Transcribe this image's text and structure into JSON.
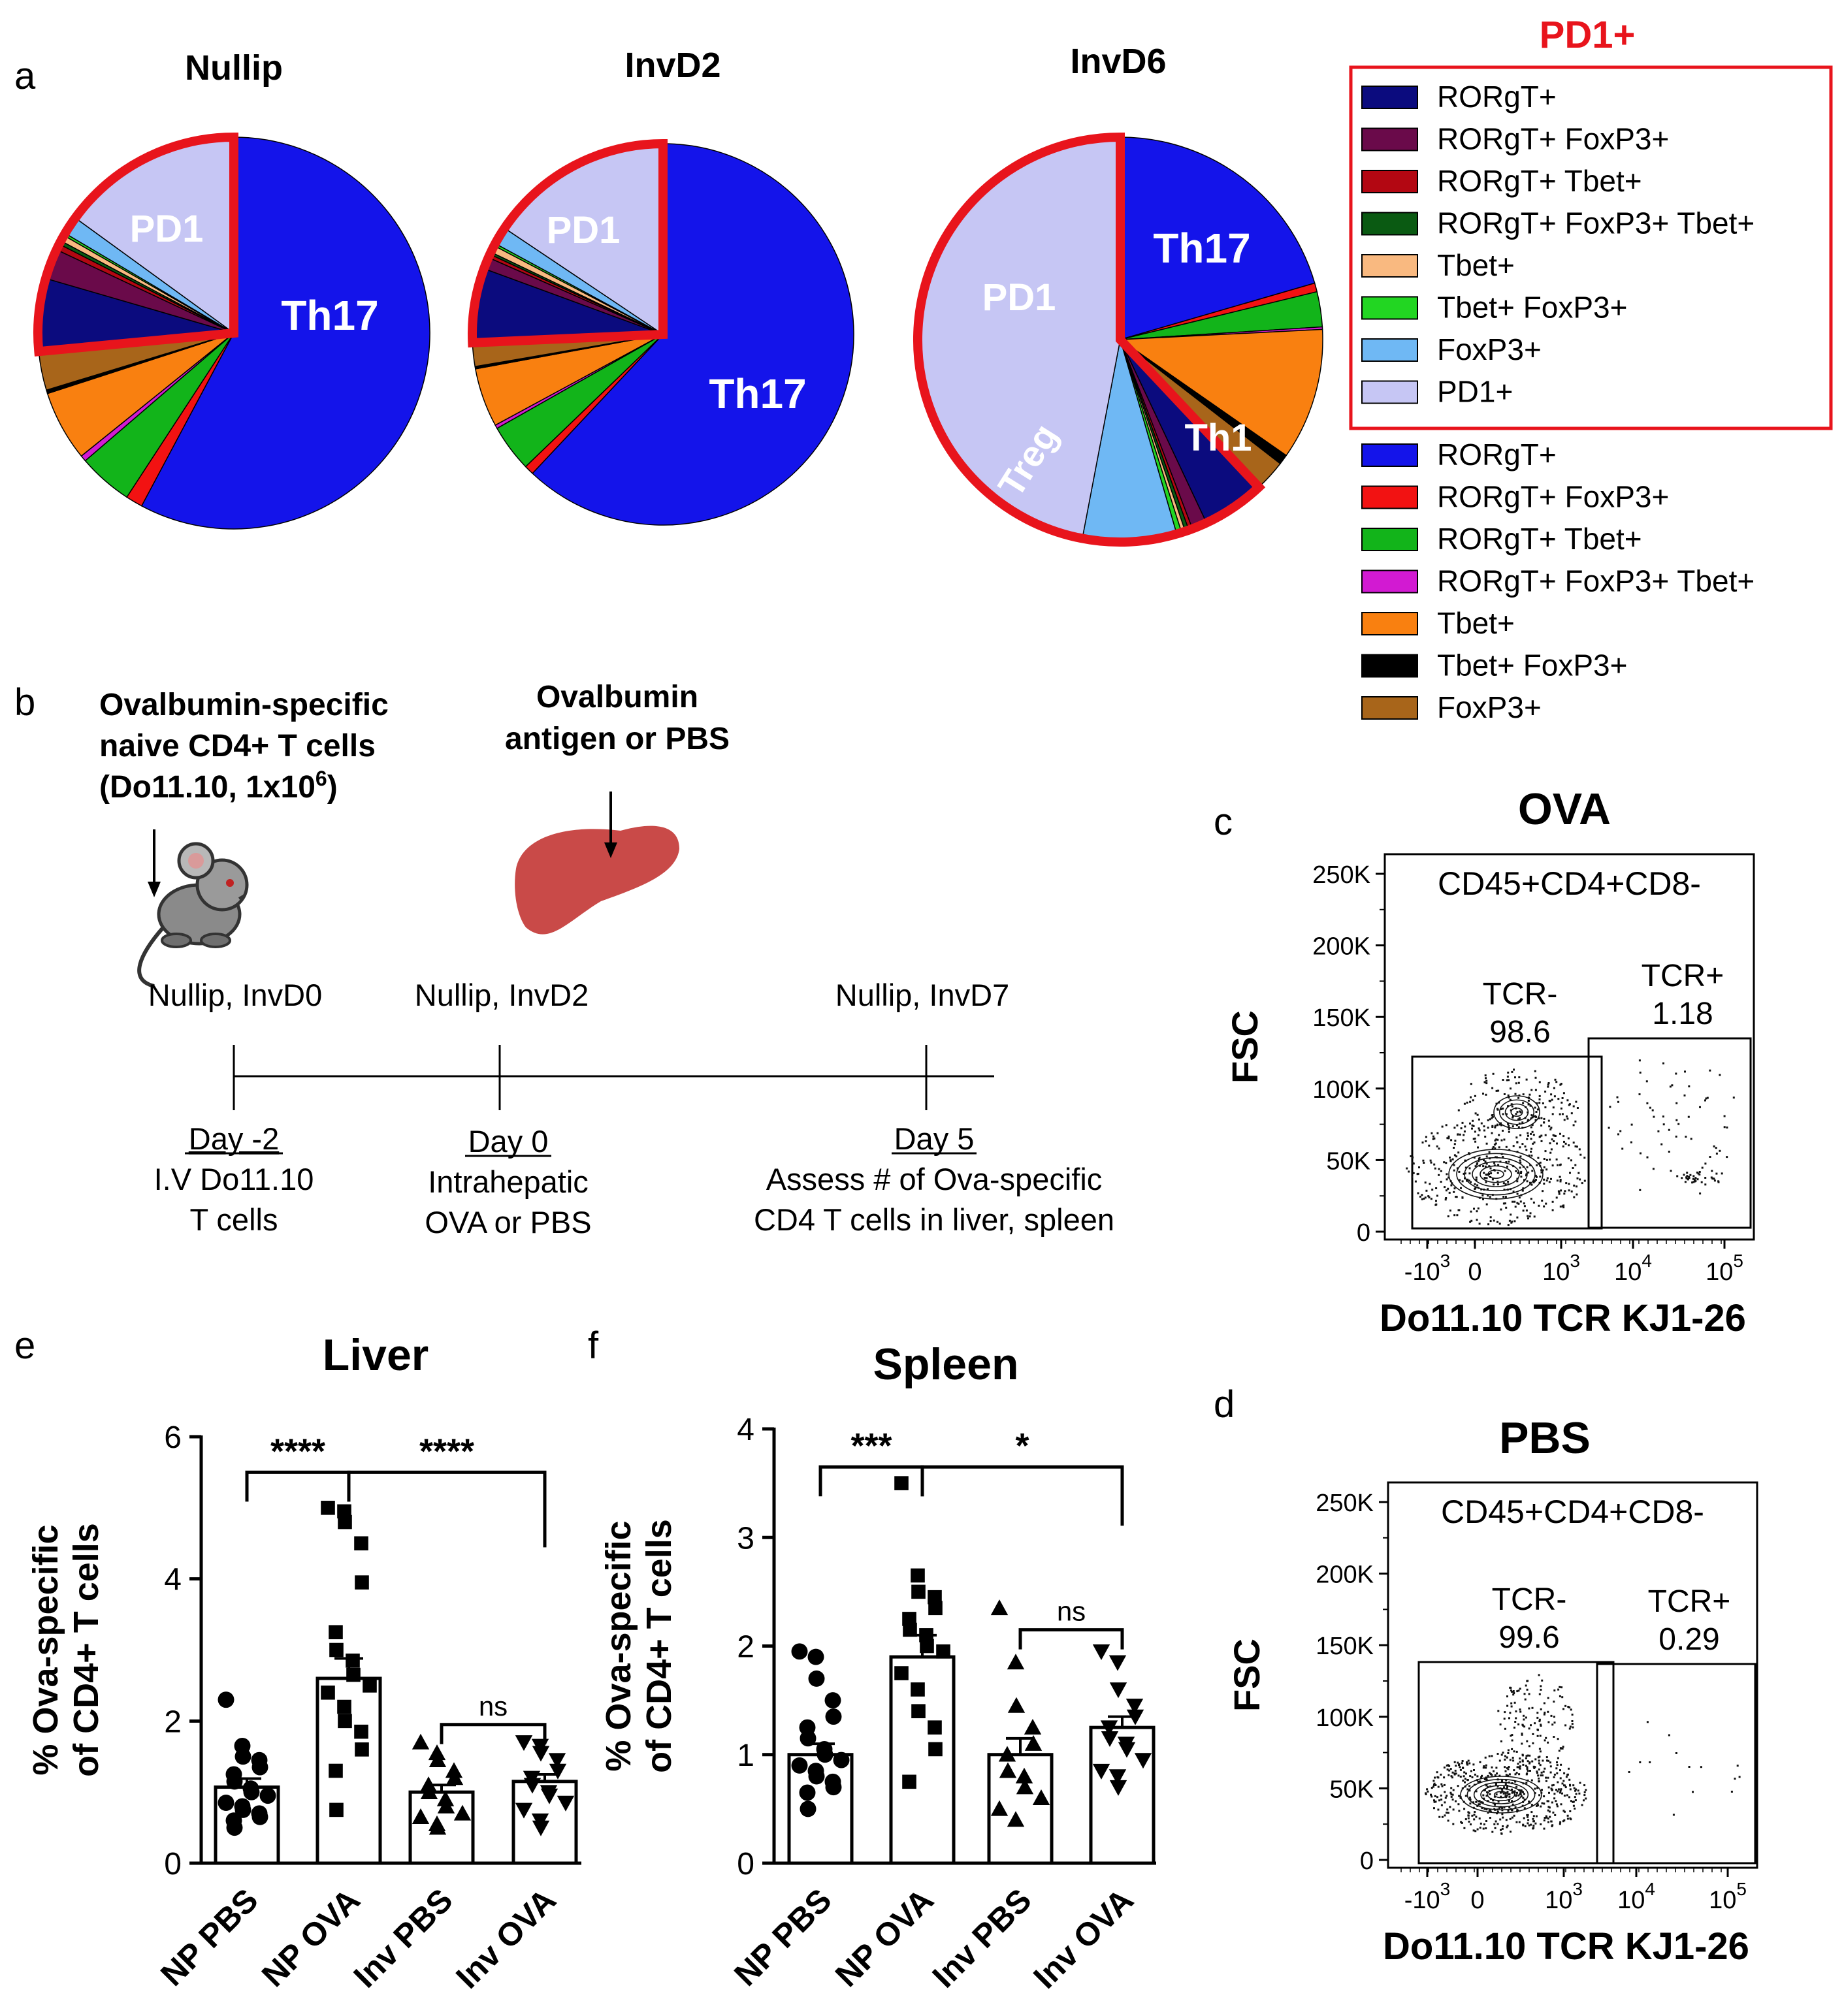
{
  "colors": {
    "pd1_red": "#e8141c",
    "rorgt_pd1": "#0b0b7e",
    "rorgt_foxp3_pd1": "#6a0a4a",
    "rorgt_tbet_pd1": "#b30712",
    "rorgt_foxp3_tbet_pd1": "#0a5a12",
    "tbet_pd1": "#f9b980",
    "tbet_foxp3_pd1": "#22d622",
    "foxp3_pd1": "#6fb8f4",
    "pd1_plus": "#c6c6f4",
    "rorgt": "#1414ea",
    "rorgt_foxp3": "#f21212",
    "rorgt_tbet": "#12b41a",
    "rorgt_foxp3_tbet": "#d21ad2",
    "tbet": "#f98010",
    "tbet_foxp3": "#000000",
    "foxp3": "#a8651a",
    "liver_fill": "#c94a48"
  },
  "panel_a": {
    "letter": "a",
    "charts": [
      {
        "title": "Nullip",
        "labels": {
          "pd1": "PD1",
          "main": "Th17"
        }
      },
      {
        "title": "InvD2",
        "labels": {
          "pd1": "PD1",
          "main": "Th17"
        }
      },
      {
        "title": "InvD6",
        "labels": {
          "pd1": "PD1",
          "main": "Th17",
          "treg": "Treg",
          "th1": "Th1"
        }
      }
    ],
    "legend": {
      "pd1_title": "PD1+",
      "pd1_items": [
        "RORgT+",
        "RORgT+ FoxP3+",
        "RORgT+ Tbet+",
        "RORgT+ FoxP3+ Tbet+",
        "Tbet+",
        "Tbet+ FoxP3+",
        "FoxP3+",
        "PD1+"
      ],
      "items": [
        "RORgT+",
        "RORgT+ FoxP3+",
        "RORgT+ Tbet+",
        "RORgT+ FoxP3+ Tbet+",
        "Tbet+",
        "Tbet+ FoxP3+",
        "FoxP3+"
      ]
    }
  },
  "panel_b": {
    "letter": "b",
    "cells_l1": "Ovalbumin-specific",
    "cells_l2": "naive CD4+ T cells",
    "cells_l3": "(Do11.10, 1x10",
    "cells_sup": "6",
    "cells_close": ")",
    "antigen_l1": "Ovalbumin",
    "antigen_l2": "antigen or PBS",
    "tp1": "Nullip, InvD0",
    "tp2": "Nullip, InvD2",
    "tp3": "Nullip, InvD7",
    "day1": "Day -2",
    "day1_d1": "I.V Do11.10",
    "day1_d2": "T cells",
    "day2": "Day 0",
    "day2_d1": "Intrahepatic",
    "day2_d2": "OVA or PBS",
    "day3": "Day 5",
    "day3_d1": "Assess # of Ova-specific",
    "day3_d2": "CD4 T cells in liver, spleen"
  },
  "panel_c": {
    "letter": "c",
    "title": "OVA",
    "gate": "CD45+CD4+CD8-",
    "neg_label": "TCR-",
    "neg_value": "98.6",
    "pos_label": "TCR+",
    "pos_value": "1.18",
    "ylabel": "FSC",
    "xlabel": "Do11.10 TCR KJ1-26"
  },
  "panel_d": {
    "letter": "d",
    "title": "PBS",
    "gate": "CD45+CD4+CD8-",
    "neg_label": "TCR-",
    "neg_value": "99.6",
    "pos_label": "TCR+",
    "pos_value": "0.29",
    "ylabel": "FSC",
    "xlabel": "Do11.10 TCR KJ1-26"
  },
  "flow_axis": {
    "y_ticks": [
      "250K",
      "200K",
      "150K",
      "100K",
      "50K",
      "0"
    ],
    "x_ticks": [
      "-10",
      "0",
      "10",
      "10",
      "10"
    ],
    "x_exps": [
      "3",
      "",
      "3",
      "4",
      "5"
    ]
  },
  "panel_e": {
    "letter": "e"
  },
  "panel_f": {
    "letter": "f"
  },
  "chart_data": [
    {
      "type": "pie",
      "title": "Nullip",
      "slices": [
        {
          "label": "RORgT+",
          "value": 57.8
        },
        {
          "label": "RORgT+ FoxP3+",
          "value": 1.4
        },
        {
          "label": "RORgT+ Tbet+",
          "value": 4.5
        },
        {
          "label": "RORgT+ FoxP3+ Tbet+",
          "value": 0.5
        },
        {
          "label": "Tbet+",
          "value": 5.8
        },
        {
          "label": "Tbet+ FoxP3+",
          "value": 0.3
        },
        {
          "label": "FoxP3+",
          "value": 3.2
        },
        {
          "label": "PD1+ RORgT+",
          "value": 6.0
        },
        {
          "label": "PD1+ RORgT+ FoxP3+",
          "value": 2.5
        },
        {
          "label": "PD1+ RORgT+ Tbet+",
          "value": 0.5
        },
        {
          "label": "PD1+ RORgT+ FoxP3+ Tbet+",
          "value": 0.3
        },
        {
          "label": "PD1+ Tbet+",
          "value": 0.5
        },
        {
          "label": "PD1+ Tbet+ FoxP3+",
          "value": 0.2
        },
        {
          "label": "PD1+ FoxP3+",
          "value": 1.5
        },
        {
          "label": "PD1+",
          "value": 15.0
        }
      ]
    },
    {
      "type": "pie",
      "title": "InvD2",
      "slices": [
        {
          "label": "RORgT+",
          "value": 62.0
        },
        {
          "label": "RORgT+ FoxP3+",
          "value": 0.8
        },
        {
          "label": "RORgT+ Tbet+",
          "value": 4.0
        },
        {
          "label": "RORgT+ FoxP3+ Tbet+",
          "value": 0.3
        },
        {
          "label": "Tbet+",
          "value": 5.0
        },
        {
          "label": "Tbet+ FoxP3+",
          "value": 0.2
        },
        {
          "label": "FoxP3+",
          "value": 2.0
        },
        {
          "label": "PD1+ RORgT+",
          "value": 6.3
        },
        {
          "label": "PD1+ RORgT+ FoxP3+",
          "value": 1.0
        },
        {
          "label": "PD1+ RORgT+ Tbet+",
          "value": 0.3
        },
        {
          "label": "PD1+ RORgT+ FoxP3+ Tbet+",
          "value": 0.2
        },
        {
          "label": "PD1+ Tbet+",
          "value": 0.6
        },
        {
          "label": "PD1+ Tbet+ FoxP3+",
          "value": 0.2
        },
        {
          "label": "PD1+ FoxP3+",
          "value": 1.5
        },
        {
          "label": "PD1+",
          "value": 15.6
        }
      ]
    },
    {
      "type": "pie",
      "title": "InvD6",
      "slices": [
        {
          "label": "RORgT+",
          "value": 20.5
        },
        {
          "label": "RORgT+ FoxP3+",
          "value": 0.7
        },
        {
          "label": "RORgT+ Tbet+",
          "value": 2.8
        },
        {
          "label": "RORgT+ FoxP3+ Tbet+",
          "value": 0.2
        },
        {
          "label": "Tbet+",
          "value": 10.5
        },
        {
          "label": "Tbet+ FoxP3+",
          "value": 0.8
        },
        {
          "label": "FoxP3+",
          "value": 2.5
        },
        {
          "label": "PD1+ RORgT+",
          "value": 5.0
        },
        {
          "label": "PD1+ RORgT+ FoxP3+",
          "value": 1.2
        },
        {
          "label": "PD1+ RORgT+ Tbet+",
          "value": 0.3
        },
        {
          "label": "PD1+ RORgT+ FoxP3+ Tbet+",
          "value": 0.3
        },
        {
          "label": "PD1+ Tbet+",
          "value": 0.3
        },
        {
          "label": "PD1+ Tbet+ FoxP3+",
          "value": 0.4
        },
        {
          "label": "PD1+ FoxP3+",
          "value": 7.5
        },
        {
          "label": "PD1+",
          "value": 47.0
        }
      ]
    },
    {
      "type": "bar",
      "title": "Liver",
      "ylabel": "% Ova-specific of CD4+ T cells",
      "ylim": [
        0,
        6
      ],
      "yticks": [
        0,
        2,
        4,
        6
      ],
      "categories": [
        "NP PBS",
        "NP OVA",
        "Inv PBS",
        "Inv OVA"
      ],
      "markers": [
        "circle",
        "square",
        "triangle",
        "triangle-down"
      ],
      "means": [
        1.07,
        2.6,
        1.0,
        1.15
      ],
      "sem": [
        0.12,
        0.28,
        0.1,
        0.1
      ],
      "points": [
        [
          2.3,
          1.65,
          1.5,
          1.45,
          1.35,
          1.25,
          1.15,
          1.05,
          1.0,
          0.95,
          0.85,
          0.8,
          0.75,
          0.7,
          0.65,
          0.6,
          0.5
        ],
        [
          5.0,
          4.95,
          4.8,
          4.5,
          3.95,
          3.25,
          3.0,
          2.85,
          2.65,
          2.5,
          2.4,
          2.2,
          2.0,
          1.85,
          1.6,
          1.3,
          0.75
        ],
        [
          1.7,
          1.55,
          1.45,
          1.3,
          1.2,
          1.1,
          1.0,
          0.9,
          0.8,
          0.7,
          0.65,
          0.55,
          0.5
        ],
        [
          1.7,
          1.65,
          1.55,
          1.45,
          1.3,
          1.2,
          1.1,
          1.0,
          0.95,
          0.85,
          0.75,
          0.6,
          0.5
        ]
      ],
      "annotations": [
        {
          "from": 0,
          "to": 1,
          "level": 5.5,
          "label": "****"
        },
        {
          "from": 1,
          "to": 3,
          "level": 5.5,
          "label": "****"
        },
        {
          "from": 2,
          "to": 3,
          "level": 1.95,
          "label": "ns"
        }
      ]
    },
    {
      "type": "bar",
      "title": "Spleen",
      "ylabel": "% Ova-specific of CD4+ T cells",
      "ylim": [
        0,
        4
      ],
      "yticks": [
        0,
        1,
        2,
        3,
        4
      ],
      "categories": [
        "NP PBS",
        "NP OVA",
        "Inv PBS",
        "Inv OVA"
      ],
      "markers": [
        "circle",
        "square",
        "triangle",
        "triangle-down"
      ],
      "means": [
        1.0,
        1.9,
        1.0,
        1.25
      ],
      "sem": [
        0.1,
        0.2,
        0.15,
        0.1
      ],
      "points": [
        [
          1.95,
          1.9,
          1.7,
          1.5,
          1.35,
          1.25,
          1.15,
          1.05,
          1.0,
          0.95,
          0.9,
          0.85,
          0.8,
          0.75,
          0.7,
          0.65,
          0.5
        ],
        [
          3.5,
          2.65,
          2.5,
          2.45,
          2.35,
          2.25,
          2.15,
          2.1,
          2.0,
          1.95,
          1.75,
          1.6,
          1.4,
          1.25,
          1.05,
          0.75
        ],
        [
          2.35,
          1.85,
          1.45,
          1.25,
          1.1,
          1.0,
          0.85,
          0.8,
          0.7,
          0.6,
          0.5,
          0.4
        ],
        [
          1.95,
          1.85,
          1.6,
          1.45,
          1.35,
          1.25,
          1.15,
          1.1,
          1.05,
          0.95,
          0.85,
          0.8,
          0.7
        ]
      ],
      "annotations": [
        {
          "from": 0,
          "to": 1,
          "level": 3.65,
          "label": "***"
        },
        {
          "from": 1,
          "to": 3,
          "level": 3.65,
          "label": "*"
        },
        {
          "from": 2,
          "to": 3,
          "level": 2.15,
          "label": "ns"
        }
      ]
    }
  ]
}
